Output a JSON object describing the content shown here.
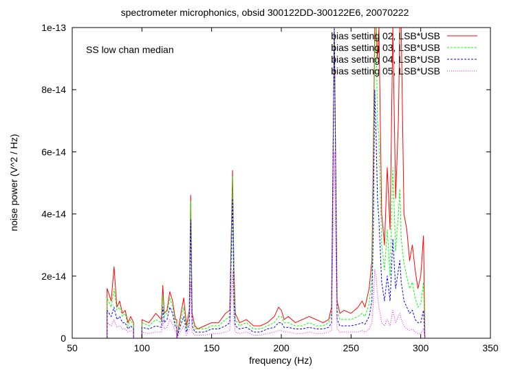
{
  "chart_data": {
    "type": "line",
    "title": "spectrometer microphonics, obsid 300122DD-300122E6, 20070222",
    "annotation": "SS low chan median",
    "xlabel": "frequency (Hz)",
    "ylabel": "noise power (V^2 / Hz)",
    "xlim": [
      50,
      350
    ],
    "ylim": [
      0,
      1e-13
    ],
    "xticks": [
      50,
      100,
      150,
      200,
      250,
      300,
      350
    ],
    "xtick_labels": [
      "50",
      "100",
      "150",
      "200",
      "250",
      "300",
      "350"
    ],
    "yticks": [
      0,
      2e-14,
      4e-14,
      6e-14,
      8e-14,
      1e-13
    ],
    "ytick_labels": [
      "0",
      "2e-14",
      "4e-14",
      "6e-14",
      "8e-14",
      "1e-13"
    ],
    "grid": false,
    "legend_position": "top-right",
    "series": [
      {
        "name": "bias setting 02, LSB*USB",
        "color": "#ff0000",
        "dash": "solid",
        "x": [
          75,
          75,
          78,
          80,
          82,
          84,
          86,
          88,
          90,
          92,
          94,
          94,
          100,
          100,
          105,
          110,
          114,
          115,
          116,
          118,
          120,
          122,
          124,
          125,
          125,
          128,
          130,
          132,
          134,
          135,
          136,
          138,
          140,
          145,
          150,
          155,
          160,
          163,
          165,
          166,
          167,
          170,
          175,
          180,
          185,
          190,
          195,
          198,
          200,
          202,
          205,
          210,
          215,
          220,
          225,
          230,
          234,
          236,
          238,
          240,
          242,
          245,
          250,
          255,
          258,
          260,
          263,
          265,
          266,
          267,
          268,
          269,
          270,
          272,
          274,
          276,
          278,
          280,
          282,
          284,
          285,
          286,
          288,
          290,
          292,
          294,
          296,
          298,
          300,
          302,
          303
        ],
        "y": [
          0,
          1.6e-14,
          1.2e-14,
          2.3e-14,
          1e-14,
          1.2e-14,
          8e-15,
          9e-15,
          5e-15,
          7e-15,
          5e-15,
          0,
          0,
          6e-15,
          5e-15,
          8e-15,
          6e-15,
          1.7e-14,
          8e-15,
          9e-15,
          1.5e-14,
          1.2e-14,
          6e-15,
          6e-15,
          0,
          8e-15,
          1.3e-14,
          4e-15,
          9e-15,
          4.6e-14,
          8e-15,
          4e-15,
          3e-15,
          4e-15,
          5e-15,
          5e-15,
          8e-15,
          9e-15,
          5.4e-14,
          2.2e-14,
          8e-15,
          5e-15,
          6e-15,
          4e-15,
          4e-15,
          5e-15,
          7e-15,
          1e-14,
          9e-15,
          6e-15,
          7e-15,
          5e-15,
          6e-15,
          7e-15,
          6e-15,
          5e-15,
          6e-15,
          1e-14,
          1e-13,
          1.2e-14,
          8e-15,
          9e-15,
          8e-15,
          1e-14,
          1.2e-14,
          1e-14,
          1.6e-14,
          2.5e-14,
          6e-14,
          1e-13,
          1e-13,
          9e-14,
          1e-13,
          4e-14,
          3e-14,
          5.5e-14,
          3.5e-14,
          1e-13,
          4.5e-14,
          7e-14,
          1e-13,
          1e-13,
          4e-14,
          3.5e-14,
          2.5e-14,
          3e-14,
          2.2e-14,
          1.6e-14,
          2e-14,
          3.3e-14,
          0
        ]
      },
      {
        "name": "bias setting 03, LSB*USB",
        "color": "#00ff00",
        "dash": "dashed",
        "x": [
          75,
          75,
          78,
          80,
          82,
          84,
          86,
          88,
          90,
          92,
          94,
          94,
          100,
          100,
          105,
          110,
          114,
          115,
          116,
          118,
          120,
          122,
          124,
          125,
          125,
          128,
          130,
          132,
          134,
          135,
          136,
          138,
          140,
          145,
          150,
          155,
          160,
          163,
          165,
          166,
          167,
          170,
          175,
          180,
          185,
          190,
          195,
          198,
          200,
          202,
          205,
          210,
          215,
          220,
          225,
          230,
          234,
          236,
          238,
          240,
          242,
          245,
          250,
          255,
          258,
          260,
          263,
          265,
          266,
          267,
          268,
          269,
          270,
          272,
          274,
          276,
          278,
          280,
          282,
          284,
          285,
          286,
          288,
          290,
          292,
          294,
          296,
          298,
          300,
          302,
          303
        ],
        "y": [
          0,
          1.3e-14,
          1e-14,
          1.6e-14,
          9e-15,
          1e-14,
          7e-15,
          8e-15,
          4e-15,
          6e-15,
          4e-15,
          0,
          0,
          5e-15,
          4e-15,
          6e-15,
          5e-15,
          1.4e-14,
          7e-15,
          8e-15,
          1.3e-14,
          1e-14,
          5e-15,
          5e-15,
          0,
          6e-15,
          1e-14,
          3e-15,
          7e-15,
          4.4e-14,
          6e-15,
          3e-15,
          3e-15,
          3e-15,
          4e-15,
          4e-15,
          6e-15,
          7e-15,
          5.2e-14,
          1.8e-14,
          6e-15,
          4e-15,
          5e-15,
          3e-15,
          3e-15,
          4e-15,
          5e-15,
          7e-15,
          7e-15,
          5e-15,
          5e-15,
          4e-15,
          4e-15,
          5e-15,
          4e-15,
          4e-15,
          5e-15,
          8e-15,
          1e-13,
          9e-15,
          6e-15,
          6e-15,
          6e-15,
          7e-15,
          8e-15,
          7e-15,
          1.1e-14,
          2e-14,
          5e-14,
          9.5e-14,
          1e-13,
          7e-14,
          6.5e-14,
          3e-14,
          2.2e-14,
          3.5e-14,
          2e-14,
          5.5e-14,
          2.8e-14,
          4e-14,
          4.8e-14,
          3.2e-14,
          2.4e-14,
          2e-14,
          1.6e-14,
          1.8e-14,
          1.3e-14,
          1e-14,
          1.1e-14,
          1.8e-14,
          0
        ]
      },
      {
        "name": "bias setting 04, LSB*USB",
        "color": "#0000ff",
        "dash": "dashed",
        "x": [
          75,
          75,
          78,
          80,
          82,
          84,
          86,
          88,
          90,
          92,
          94,
          94,
          100,
          100,
          105,
          110,
          114,
          115,
          116,
          118,
          120,
          122,
          124,
          125,
          125,
          128,
          130,
          132,
          134,
          135,
          136,
          138,
          140,
          145,
          150,
          155,
          160,
          163,
          165,
          166,
          167,
          170,
          175,
          180,
          185,
          190,
          195,
          198,
          200,
          202,
          205,
          210,
          215,
          220,
          225,
          230,
          234,
          236,
          238,
          240,
          242,
          245,
          250,
          255,
          258,
          260,
          263,
          265,
          266,
          267,
          268,
          269,
          270,
          272,
          274,
          276,
          278,
          280,
          282,
          284,
          285,
          286,
          288,
          290,
          292,
          294,
          296,
          298,
          300,
          302,
          303
        ],
        "y": [
          0,
          9e-15,
          7e-15,
          1e-14,
          6e-15,
          7e-15,
          5e-15,
          5e-15,
          3e-15,
          4e-15,
          3e-15,
          0,
          0,
          3.5e-15,
          3e-15,
          4e-15,
          3.5e-15,
          1e-14,
          5e-15,
          6e-15,
          1e-14,
          8e-15,
          3.5e-15,
          3.5e-15,
          0,
          4.5e-15,
          7e-15,
          2e-15,
          5e-15,
          3.8e-14,
          4e-15,
          2e-15,
          2e-15,
          2e-15,
          3e-15,
          3e-15,
          4e-15,
          5e-15,
          4.5e-14,
          1.2e-14,
          4e-15,
          3e-15,
          3.5e-15,
          2e-15,
          2e-15,
          3e-15,
          3.5e-15,
          5e-15,
          5e-15,
          3.5e-15,
          3.5e-15,
          3e-15,
          3e-15,
          3.5e-15,
          3e-15,
          3e-15,
          3.5e-15,
          5e-15,
          1e-13,
          6e-15,
          4e-15,
          4e-15,
          4e-15,
          4.5e-15,
          5e-15,
          4.5e-15,
          7e-15,
          1.2e-14,
          3.5e-14,
          8e-14,
          6.5e-14,
          4.5e-14,
          3.8e-14,
          1.8e-14,
          1.2e-14,
          2e-14,
          1.2e-14,
          3.2e-14,
          1.6e-14,
          2.2e-14,
          2.5e-14,
          1.8e-14,
          1.2e-14,
          1e-14,
          8e-15,
          9e-15,
          6e-15,
          5e-15,
          5e-15,
          9e-15,
          0
        ]
      },
      {
        "name": "bias setting 05, LSB*USB",
        "color": "#ff00ff",
        "dash": "dotted",
        "x": [
          75,
          75,
          78,
          80,
          82,
          84,
          86,
          88,
          90,
          92,
          94,
          94,
          100,
          100,
          105,
          110,
          114,
          115,
          116,
          118,
          120,
          122,
          124,
          125,
          125,
          128,
          130,
          132,
          134,
          135,
          136,
          138,
          140,
          145,
          150,
          155,
          160,
          163,
          165,
          166,
          167,
          170,
          175,
          180,
          185,
          190,
          195,
          198,
          200,
          202,
          205,
          210,
          215,
          220,
          225,
          230,
          234,
          236,
          238,
          240,
          242,
          245,
          250,
          255,
          258,
          260,
          263,
          265,
          266,
          267,
          268,
          269,
          270,
          272,
          274,
          276,
          278,
          280,
          282,
          284,
          285,
          286,
          288,
          290,
          292,
          294,
          296,
          298,
          300,
          302,
          303
        ],
        "y": [
          0,
          5e-15,
          4e-15,
          6e-15,
          3.5e-15,
          4e-15,
          3e-15,
          3e-15,
          2e-15,
          2.5e-15,
          2e-15,
          0,
          0,
          2e-15,
          1.5e-15,
          2e-15,
          2e-15,
          6e-15,
          3e-15,
          3.5e-15,
          6e-15,
          4.5e-15,
          2e-15,
          2e-15,
          0,
          2.5e-15,
          4e-15,
          1e-15,
          3e-15,
          1.8e-14,
          2e-15,
          1e-15,
          1e-15,
          1e-15,
          1.5e-15,
          1.5e-15,
          2e-15,
          2.5e-15,
          2.2e-14,
          6e-15,
          2e-15,
          1.5e-15,
          2e-15,
          1e-15,
          1e-15,
          1.5e-15,
          2e-15,
          2.5e-15,
          2.5e-15,
          2e-15,
          2e-15,
          1.5e-15,
          1.5e-15,
          2e-15,
          1.5e-15,
          1.5e-15,
          2e-15,
          2.5e-15,
          6e-14,
          3e-15,
          2e-15,
          2e-15,
          2e-15,
          2e-15,
          2.5e-15,
          2e-15,
          3e-15,
          5e-15,
          1.2e-14,
          2.2e-14,
          2e-14,
          1.4e-14,
          1e-14,
          5e-15,
          4e-15,
          6e-15,
          4e-15,
          9e-15,
          5e-15,
          7e-15,
          8e-15,
          6e-15,
          4e-15,
          3e-15,
          2.5e-15,
          3e-15,
          2e-15,
          1.5e-15,
          1.5e-15,
          3e-15,
          0
        ]
      }
    ]
  }
}
